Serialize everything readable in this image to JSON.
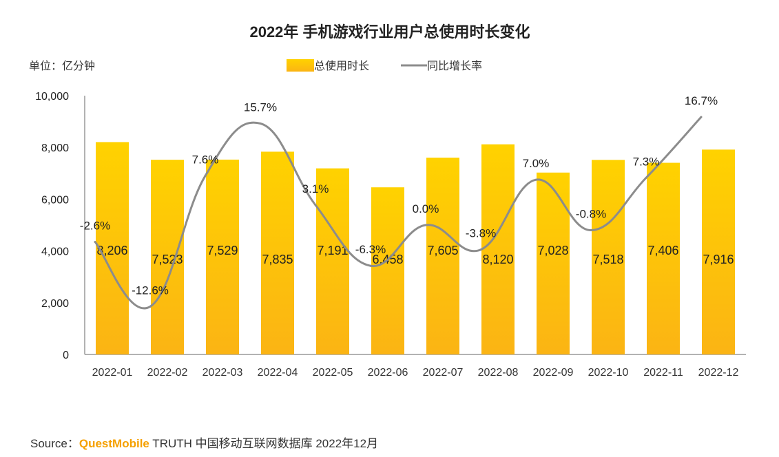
{
  "footer": {
    "source_label": "Source：",
    "brand": "QuestMobile",
    "rest": " TRUTH 中国移动互联网数据库 2022年12月"
  },
  "colors": {
    "bar_top": "#ffd200",
    "bar_bottom": "#fbb414",
    "line": "#8c8c8c"
  },
  "chart_data": {
    "type": "bar",
    "title": "2022年 手机游戏行业用户总使用时长变化",
    "unit_label": "单位：亿分钟",
    "categories": [
      "2022-01",
      "2022-02",
      "2022-03",
      "2022-04",
      "2022-05",
      "2022-06",
      "2022-07",
      "2022-08",
      "2022-09",
      "2022-10",
      "2022-11",
      "2022-12"
    ],
    "series": [
      {
        "name": "总使用时长",
        "type": "bar",
        "axis": "left",
        "values": [
          8206,
          7523,
          7529,
          7835,
          7191,
          6458,
          7605,
          8120,
          7028,
          7518,
          7406,
          7916
        ],
        "labels": [
          "8,206",
          "7,523",
          "7,529",
          "7,835",
          "7,191",
          "6,458",
          "7,605",
          "8,120",
          "7,028",
          "7,518",
          "7,406",
          "7,916"
        ]
      },
      {
        "name": "同比增长率",
        "type": "line",
        "axis": "right",
        "values": [
          -2.6,
          -12.6,
          7.6,
          15.7,
          3.1,
          -6.3,
          0.0,
          -3.8,
          7.0,
          -0.8,
          7.3,
          16.7
        ],
        "labels": [
          "-2.6%",
          "-12.6%",
          "7.6%",
          "15.7%",
          "3.1%",
          "-6.3%",
          "0.0%",
          "-3.8%",
          "7.0%",
          "-0.8%",
          "7.3%",
          "16.7%"
        ]
      }
    ],
    "ylim": [
      0,
      10000
    ],
    "yticks": [
      0,
      2000,
      4000,
      6000,
      8000,
      10000
    ],
    "ytick_labels": [
      "0",
      "2,000",
      "4,000",
      "6,000",
      "8,000",
      "10,000"
    ],
    "y2lim": [
      -20,
      20
    ],
    "legend_position": "top-center",
    "grid": false
  }
}
